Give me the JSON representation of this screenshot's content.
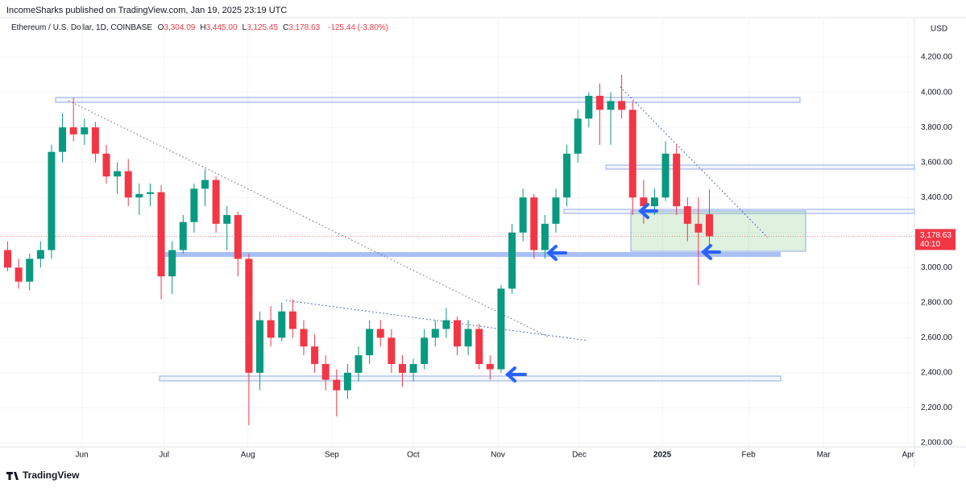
{
  "published": "IncomeSharks published on TradingView.com, Jan 19, 2025 23:19 UTC",
  "brand": "TradingView",
  "chart_data": {
    "type": "candlestick",
    "symbol": "Ethereum / U.S. Dollar, 1D, COINBASE",
    "ohlc_letters": [
      "O",
      "H",
      "L",
      "C"
    ],
    "ohlc_labels": [
      "3,304.09",
      "3,445.00",
      "3,125.45",
      "3,178.63"
    ],
    "change_label": "-125.44 (-3.80%)",
    "currency": "USD",
    "last_price_label": "3,178.63",
    "countdown": "40:10",
    "up_color": "#089981",
    "down_color": "#f23645",
    "open": [
      3100,
      3000,
      2920,
      3050,
      3100,
      3660,
      3800,
      3760,
      3800,
      3650,
      3520,
      3550,
      3400,
      3420,
      3430,
      2950,
      3100,
      3260,
      3450,
      3500,
      3250,
      3300,
      3050,
      2400,
      2700,
      2600,
      2750,
      2650,
      2550,
      2450,
      2360,
      2300,
      2400,
      2500,
      2650,
      2600,
      2450,
      2400,
      2450,
      2600,
      2650,
      2700,
      2550,
      2650,
      2450,
      2420,
      2880,
      3200,
      3400,
      3100,
      3250,
      3400,
      3650,
      3850,
      3980,
      3900,
      3950,
      3900,
      3400,
      3350,
      3400,
      3650,
      3350,
      3250,
      3304.09
    ],
    "high": [
      3150,
      3050,
      3080,
      3150,
      3700,
      3880,
      3970,
      3850,
      3830,
      3700,
      3600,
      3620,
      3480,
      3480,
      3470,
      3150,
      3300,
      3480,
      3560,
      3520,
      3350,
      3320,
      3080,
      2750,
      2780,
      2800,
      2820,
      2700,
      2620,
      2500,
      2420,
      2450,
      2550,
      2700,
      2700,
      2650,
      2500,
      2480,
      2650,
      2700,
      2770,
      2720,
      2700,
      2680,
      2500,
      2900,
      3250,
      3450,
      3420,
      3300,
      3450,
      3700,
      3900,
      4000,
      4050,
      4000,
      4100,
      3950,
      3500,
      3450,
      3720,
      3700,
      3400,
      3400,
      3445
    ],
    "low": [
      2980,
      2880,
      2870,
      3000,
      3050,
      3600,
      3720,
      3700,
      3600,
      3480,
      3420,
      3350,
      3300,
      3350,
      2820,
      2850,
      3080,
      3200,
      3350,
      3200,
      3100,
      2950,
      2100,
      2300,
      2550,
      2580,
      2600,
      2500,
      2400,
      2300,
      2150,
      2250,
      2350,
      2450,
      2550,
      2400,
      2320,
      2350,
      2420,
      2550,
      2600,
      2500,
      2500,
      2420,
      2360,
      2400,
      2850,
      3150,
      3050,
      3050,
      3200,
      3350,
      3600,
      3800,
      3700,
      3700,
      3850,
      3300,
      3250,
      3300,
      3380,
      3300,
      3150,
      2900,
      3125.45
    ],
    "close": [
      3000,
      2920,
      3050,
      3100,
      3660,
      3800,
      3760,
      3800,
      3650,
      3520,
      3550,
      3400,
      3420,
      3430,
      2950,
      3100,
      3260,
      3450,
      3500,
      3250,
      3300,
      3050,
      2400,
      2700,
      2600,
      2750,
      2650,
      2550,
      2450,
      2360,
      2300,
      2400,
      2500,
      2650,
      2600,
      2450,
      2400,
      2450,
      2600,
      2650,
      2700,
      2550,
      2650,
      2450,
      2420,
      2880,
      3200,
      3400,
      3100,
      3250,
      3400,
      3650,
      3850,
      3980,
      3900,
      3950,
      3900,
      3400,
      3350,
      3400,
      3650,
      3350,
      3250,
      3200,
      3178.63
    ],
    "xlim": [
      -0.7,
      82.7
    ],
    "xticks": [
      {
        "value": 6.76,
        "label": "Jun"
      },
      {
        "value": 14.26,
        "label": "Jul"
      },
      {
        "value": 21.91,
        "label": "Aug"
      },
      {
        "value": 29.56,
        "label": "Sep"
      },
      {
        "value": 36.99,
        "label": "Oct"
      },
      {
        "value": 44.71,
        "label": "Nov"
      },
      {
        "value": 52.13,
        "label": "Dec"
      },
      {
        "value": 59.71,
        "label": "2025"
      },
      {
        "value": 67.57,
        "label": "Feb"
      },
      {
        "value": 74.41,
        "label": "Mar"
      },
      {
        "value": 82.13,
        "label": "Apr"
      }
    ],
    "ylim": [
      1954,
      4306
    ],
    "yticks": [
      {
        "value": 2000,
        "label": "2,000.00"
      },
      {
        "value": 2200,
        "label": "2,200.00"
      },
      {
        "value": 2400,
        "label": "2,400.00"
      },
      {
        "value": 2600,
        "label": "2,600.00"
      },
      {
        "value": 2800,
        "label": "2,800.00"
      },
      {
        "value": 3000,
        "label": "3,000.00"
      },
      {
        "value": 3200,
        "label": "3,200.00"
      },
      {
        "value": 3400,
        "label": "3,400.00"
      },
      {
        "value": 3600,
        "label": "3,600.00"
      },
      {
        "value": 3800,
        "label": "3,800.00"
      },
      {
        "value": 4000,
        "label": "4,000.00"
      },
      {
        "value": 4200,
        "label": "4,200.00"
      }
    ]
  }
}
